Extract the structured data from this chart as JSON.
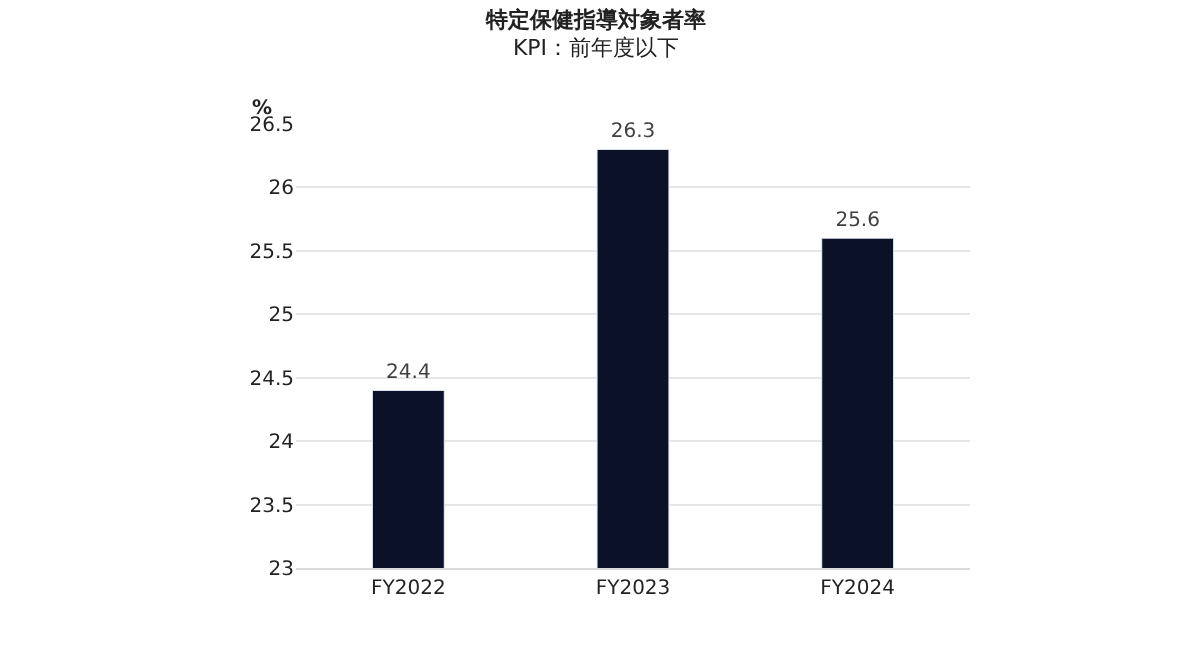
{
  "chart_data": {
    "type": "bar",
    "title": "特定保健指導対象者率",
    "subtitle": "KPI：前年度以下",
    "ylabel": "%",
    "categories": [
      "FY2022",
      "FY2023",
      "FY2024"
    ],
    "values": [
      24.4,
      26.3,
      25.6
    ],
    "color": "#0b1228",
    "ylim": [
      23,
      26.5
    ],
    "yticks": [
      23,
      23.5,
      24,
      24.5,
      25,
      25.5,
      26,
      26.5
    ],
    "grid": "y",
    "data_labels": true,
    "legend": false
  }
}
